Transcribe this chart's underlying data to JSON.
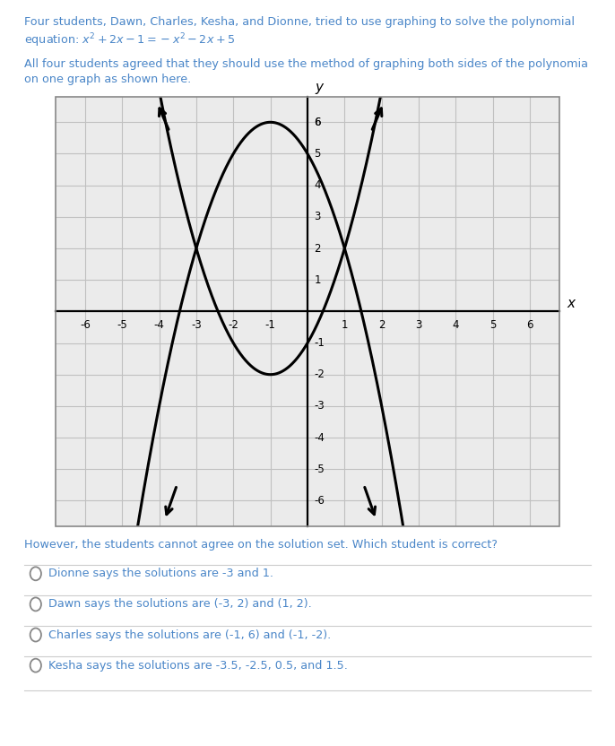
{
  "options": [
    "Dionne says the solutions are -3 and 1.",
    "Dawn says the solutions are (-3, 2) and (1, 2).",
    "Charles says the solutions are (-1, 6) and (-1, -2).",
    "Kesha says the solutions are -3.5, -2.5, 0.5, and 1.5."
  ],
  "xlim": [
    -6.8,
    6.8
  ],
  "ylim": [
    -6.8,
    6.8
  ],
  "xticks": [
    -6,
    -5,
    -4,
    -3,
    -2,
    -1,
    1,
    2,
    3,
    4,
    5,
    6
  ],
  "yticks": [
    -6,
    -5,
    -4,
    -3,
    -2,
    -1,
    1,
    2,
    3,
    4,
    5,
    6
  ],
  "curve_color": "#000000",
  "grid_color": "#c0c0c0",
  "text_color": "#4a86c8",
  "bg_color": "#ffffff",
  "plot_bg": "#ebebeb"
}
